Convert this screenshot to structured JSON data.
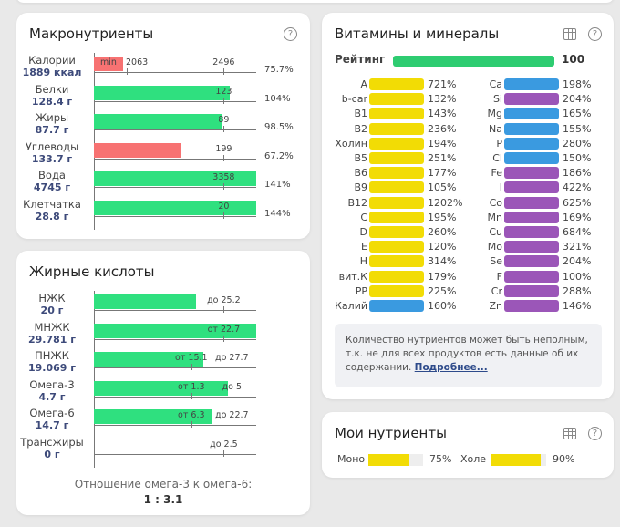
{
  "colors": {
    "green": "#2fe07f",
    "red": "#f77272",
    "yellow": "#f2dc05",
    "blue": "#3a9ae0",
    "purple": "#9b56b8",
    "rating": "#2ecc71"
  },
  "macro": {
    "title": "Макронутриенты",
    "help_icon": "question-circle-icon",
    "rows": [
      {
        "name": "Калории",
        "amount": "1889 ккал",
        "fill": 0.18,
        "color": "red",
        "marks": [
          {
            "text": "min",
            "at": 0.1
          },
          {
            "text": "2063",
            "at": 0.2
          },
          {
            "text": "2496",
            "at": 0.8
          }
        ],
        "pct": "75.7%"
      },
      {
        "name": "Белки",
        "amount": "128.4 г",
        "fill": 0.838,
        "color": "green",
        "marks": [
          {
            "text": "123",
            "at": 0.8
          }
        ],
        "pct": "104%"
      },
      {
        "name": "Жиры",
        "amount": "87.7 г",
        "fill": 0.79,
        "color": "green",
        "marks": [
          {
            "text": "89",
            "at": 0.8
          }
        ],
        "pct": "98.5%"
      },
      {
        "name": "Углеводы",
        "amount": "133.7 г",
        "fill": 0.534,
        "color": "red",
        "marks": [
          {
            "text": "199",
            "at": 0.8
          }
        ],
        "pct": "67.2%"
      },
      {
        "name": "Вода",
        "amount": "4745 г",
        "fill": 1,
        "color": "green",
        "marks": [
          {
            "text": "3358",
            "at": 0.8
          }
        ],
        "pct": "141%"
      },
      {
        "name": "Клетчатка",
        "amount": "28.8 г",
        "fill": 1,
        "color": "green",
        "marks": [
          {
            "text": "20",
            "at": 0.8
          }
        ],
        "pct": "144%"
      }
    ]
  },
  "fatty": {
    "title": "Жирные кислоты",
    "rows": [
      {
        "name": "НЖК",
        "amount": "20 г",
        "fill": 0.63,
        "marks": [
          {
            "text": "до 25.2",
            "at": 0.8
          }
        ]
      },
      {
        "name": "МНЖК",
        "amount": "29.781 г",
        "fill": 1,
        "marks": [
          {
            "text": "от 22.7",
            "at": 0.8
          }
        ]
      },
      {
        "name": "ПНЖК",
        "amount": "19.069 г",
        "fill": 0.675,
        "marks": [
          {
            "text": "от 15.1",
            "at": 0.6
          },
          {
            "text": "до 27.7",
            "at": 0.85
          }
        ]
      },
      {
        "name": "Омега-3",
        "amount": "4.7 г",
        "fill": 0.825,
        "marks": [
          {
            "text": "от 1.3",
            "at": 0.6
          },
          {
            "text": "до 5",
            "at": 0.85
          }
        ]
      },
      {
        "name": "Омега-6",
        "amount": "14.7 г",
        "fill": 0.725,
        "marks": [
          {
            "text": "от 6.3",
            "at": 0.6
          },
          {
            "text": "до 22.7",
            "at": 0.85
          }
        ]
      },
      {
        "name": "Трансжиры",
        "amount": "0 г",
        "fill": 0,
        "marks": [
          {
            "text": "до 2.5",
            "at": 0.8
          }
        ]
      }
    ],
    "ratio_label": "Отношение омега-3 к омега-6:",
    "ratio_value": "1 : 3.1"
  },
  "vitamins": {
    "title": "Витамины и минералы",
    "table_icon": "table-icon",
    "help_icon": "question-circle-icon",
    "rating_label": "Рейтинг",
    "rating_value": "100",
    "left": [
      [
        "A",
        "721%",
        "yellow"
      ],
      [
        "b-car",
        "132%",
        "yellow"
      ],
      [
        "B1",
        "143%",
        "yellow"
      ],
      [
        "B2",
        "236%",
        "yellow"
      ],
      [
        "Холин",
        "194%",
        "yellow"
      ],
      [
        "B5",
        "251%",
        "yellow"
      ],
      [
        "B6",
        "177%",
        "yellow"
      ],
      [
        "B9",
        "105%",
        "yellow"
      ],
      [
        "B12",
        "1202%",
        "yellow"
      ],
      [
        "C",
        "195%",
        "yellow"
      ],
      [
        "D",
        "260%",
        "yellow"
      ],
      [
        "E",
        "120%",
        "yellow"
      ],
      [
        "H",
        "314%",
        "yellow"
      ],
      [
        "вит.К",
        "179%",
        "yellow"
      ],
      [
        "PP",
        "225%",
        "yellow"
      ],
      [
        "Калий",
        "160%",
        "blue"
      ]
    ],
    "right": [
      [
        "Ca",
        "198%",
        "blue"
      ],
      [
        "Si",
        "204%",
        "purple"
      ],
      [
        "Mg",
        "165%",
        "blue"
      ],
      [
        "Na",
        "155%",
        "blue"
      ],
      [
        "P",
        "280%",
        "blue"
      ],
      [
        "Cl",
        "150%",
        "blue"
      ],
      [
        "Fe",
        "186%",
        "purple"
      ],
      [
        "I",
        "422%",
        "purple"
      ],
      [
        "Co",
        "625%",
        "purple"
      ],
      [
        "Mn",
        "169%",
        "purple"
      ],
      [
        "Cu",
        "684%",
        "purple"
      ],
      [
        "Mo",
        "321%",
        "purple"
      ],
      [
        "Se",
        "204%",
        "purple"
      ],
      [
        "F",
        "100%",
        "purple"
      ],
      [
        "Cr",
        "288%",
        "purple"
      ],
      [
        "Zn",
        "146%",
        "purple"
      ]
    ],
    "note": "Количество нутриентов может быть неполным, т.к. не для всех продуктов есть данные об их содержании.",
    "note_link": "Подробнее..."
  },
  "my": {
    "title": "Мои нутриенты",
    "items": [
      {
        "name": "Моно",
        "value": 75,
        "pct": "75%"
      },
      {
        "name": "Холе",
        "value": 90,
        "pct": "90%"
      }
    ]
  }
}
